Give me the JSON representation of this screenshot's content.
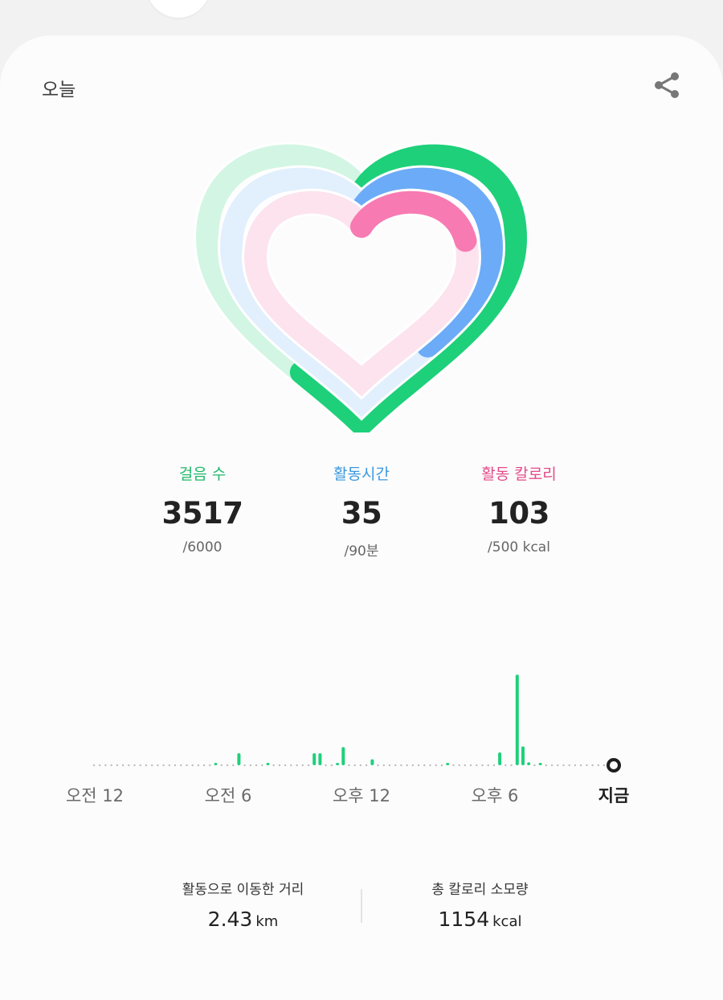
{
  "header": {
    "title": "오늘"
  },
  "colors": {
    "steps": "#1ed07a",
    "active_time": "#6cabf7",
    "calories": "#f87ab2"
  },
  "rings": [
    {
      "name": "steps",
      "progress": 0.586
    },
    {
      "name": "active_time",
      "progress": 0.389
    },
    {
      "name": "calories",
      "progress": 0.206
    }
  ],
  "stats": [
    {
      "label": "걸음 수",
      "value": "3517",
      "goal": "/6000",
      "color": "#1fb86a"
    },
    {
      "label": "활동시간",
      "value": "35",
      "goal": "/90분",
      "color": "#3a98e0"
    },
    {
      "label": "활동 칼로리",
      "value": "103",
      "goal": "/500 kcal",
      "color": "#e44a8a"
    }
  ],
  "timeline": {
    "labels": [
      "오전 12",
      "오전 6",
      "오후 12",
      "오후 6"
    ],
    "now_label": "지금",
    "activity": [
      0,
      0,
      0,
      0,
      0,
      0,
      0,
      0,
      0,
      0,
      0,
      0,
      0,
      0,
      0,
      0,
      0,
      0,
      0,
      0,
      0,
      0.2,
      0,
      0,
      0,
      1.6,
      0,
      0,
      0,
      0,
      0.3,
      0,
      0,
      0,
      0,
      0,
      0,
      0,
      1.6,
      1.6,
      0,
      0,
      0.3,
      2.4,
      0,
      0,
      0,
      0,
      0.8,
      0,
      0,
      0,
      0,
      0,
      0,
      0,
      0,
      0,
      0,
      0,
      0,
      0.3,
      0,
      0,
      0,
      0,
      0,
      0,
      0,
      0,
      1.7,
      0,
      0,
      12,
      2.5,
      0.4,
      0,
      0.2,
      0,
      0,
      0,
      0,
      0,
      0,
      0,
      0,
      0,
      0,
      0
    ]
  },
  "footer": {
    "distance": {
      "label": "활동으로 이동한 거리",
      "value": "2.43",
      "unit": "km"
    },
    "total_calories": {
      "label": "총 칼로리 소모량",
      "value": "1154",
      "unit": "kcal"
    }
  }
}
